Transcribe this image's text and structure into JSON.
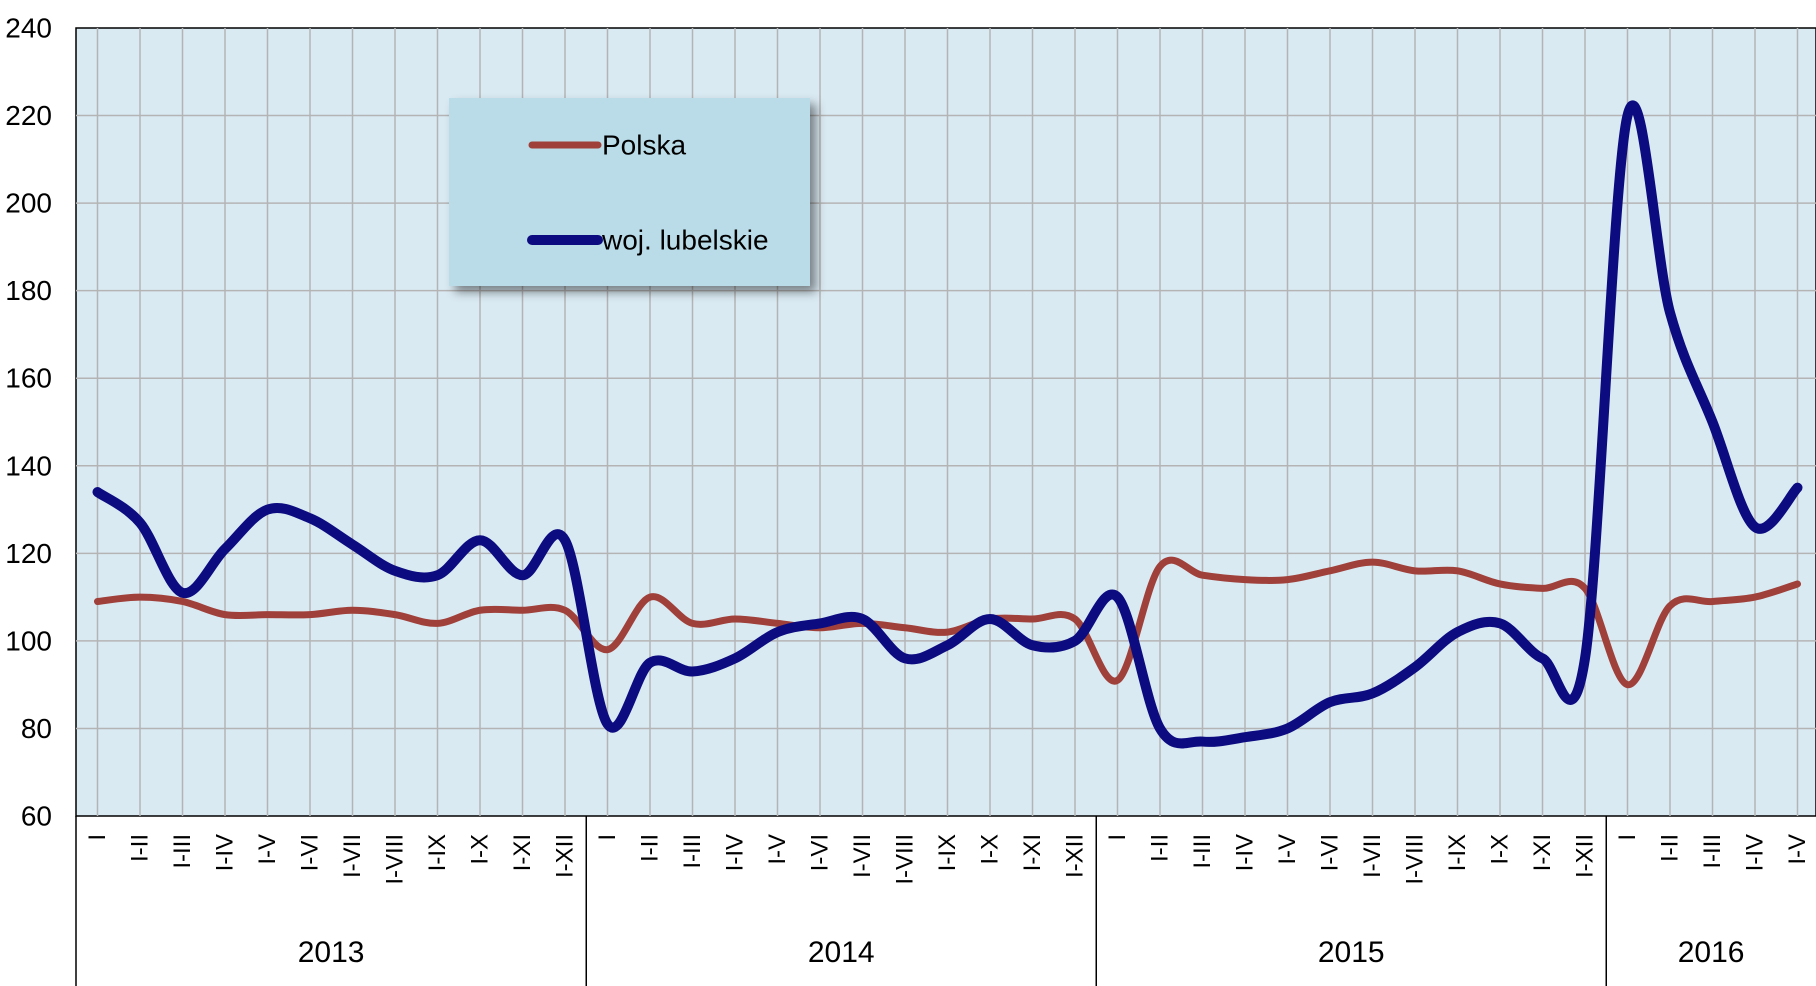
{
  "chart_data": {
    "type": "line",
    "title": "",
    "xlabel": "",
    "ylabel": "",
    "ylim": [
      60,
      240
    ],
    "yticks": [
      60,
      80,
      100,
      120,
      140,
      160,
      180,
      200,
      220,
      240
    ],
    "grid": true,
    "legend_position": "top-left",
    "x": [
      "I",
      "I-II",
      "I-III",
      "I-IV",
      "I-V",
      "I-VI",
      "I-VII",
      "I-VIII",
      "I-IX",
      "I-X",
      "I-XI",
      "I-XII",
      "I",
      "I-II",
      "I-III",
      "I-IV",
      "I-V",
      "I-VI",
      "I-VII",
      "I-VIII",
      "I-IX",
      "I-X",
      "I-XI",
      "I-XII",
      "I",
      "I-II",
      "I-III",
      "I-IV",
      "I-V",
      "I-VI",
      "I-VII",
      "I-VIII",
      "I-IX",
      "I-X",
      "I-XI",
      "I-XII",
      "I",
      "I-II",
      "I-III",
      "I-IV",
      "I-V"
    ],
    "groups": [
      {
        "label": "2013",
        "count": 12
      },
      {
        "label": "2014",
        "count": 12
      },
      {
        "label": "2015",
        "count": 12
      },
      {
        "label": "2016",
        "count": 5
      }
    ],
    "series": [
      {
        "name": "Polska",
        "color": "#a0403a",
        "values": [
          109,
          110,
          109,
          106,
          106,
          106,
          107,
          106,
          104,
          107,
          107,
          107,
          98,
          110,
          104,
          105,
          104,
          103,
          104,
          103,
          102,
          105,
          105,
          105,
          91,
          117,
          115,
          114,
          114,
          116,
          118,
          116,
          116,
          113,
          112,
          112,
          90,
          108,
          109,
          110,
          113
        ]
      },
      {
        "name": "woj. lubelskie",
        "color": "#0c0c80",
        "values": [
          134,
          127,
          111,
          121,
          130,
          128,
          122,
          116,
          115,
          123,
          115,
          123,
          81,
          95,
          93,
          96,
          102,
          104,
          105,
          96,
          99,
          105,
          99,
          100,
          110,
          80,
          77,
          78,
          80,
          86,
          88,
          94,
          102,
          104,
          96,
          96,
          220,
          175,
          150,
          126,
          135
        ]
      }
    ]
  }
}
